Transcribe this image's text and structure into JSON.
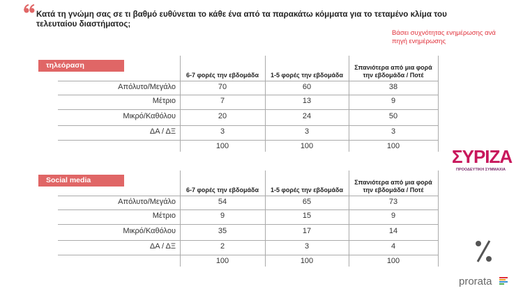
{
  "question": "Κατά τη γνώμη σας σε τι βαθμό ευθύνεται το κάθε ένα από τα παρακάτω κόμματα για το τεταμένο κλίμα του τελευταίου διαστήματος;",
  "note": "Βάσει συχνότητας ενημέρωσης ανά πηγή ενημέρωσης",
  "tables": [
    {
      "label": "τηλεόραση",
      "columns": [
        "6-7 φορές την εβδομάδα",
        "1-5 φορές την εβδομάδα",
        "Σπανιότερα από μια φορά την εβδομάδα / Ποτέ"
      ],
      "rows": [
        {
          "label": "Απόλυτο/Μεγάλο",
          "cells": [
            70,
            60,
            38
          ]
        },
        {
          "label": "Μέτριο",
          "cells": [
            7,
            13,
            9
          ]
        },
        {
          "label": "Μικρό/Καθόλου",
          "cells": [
            20,
            24,
            50
          ]
        },
        {
          "label": "ΔΑ / ΔΞ",
          "cells": [
            3,
            3,
            3
          ]
        }
      ],
      "totals": [
        100,
        100,
        100
      ]
    },
    {
      "label": "Social media",
      "columns": [
        "6-7 φορές την εβδομάδα",
        "1-5 φορές την εβδομάδα",
        "Σπανιότερα από μια φορά την εβδομάδα / Ποτέ"
      ],
      "rows": [
        {
          "label": "Απόλυτο/Μεγάλο",
          "cells": [
            54,
            65,
            73
          ]
        },
        {
          "label": "Μέτριο",
          "cells": [
            9,
            15,
            9
          ]
        },
        {
          "label": "Μικρό/Καθόλου",
          "cells": [
            35,
            17,
            14
          ]
        },
        {
          "label": "ΔΑ / ΔΞ",
          "cells": [
            2,
            3,
            4
          ]
        }
      ],
      "totals": [
        100,
        100,
        100
      ]
    }
  ],
  "logo": {
    "name": "ΣΥΡΙΖΑ",
    "tagline": "ΠΡΟΟΔΕΥΤΙΚΗ ΣΥΜΜΑΧΙΑ"
  },
  "brand": "prorata"
}
